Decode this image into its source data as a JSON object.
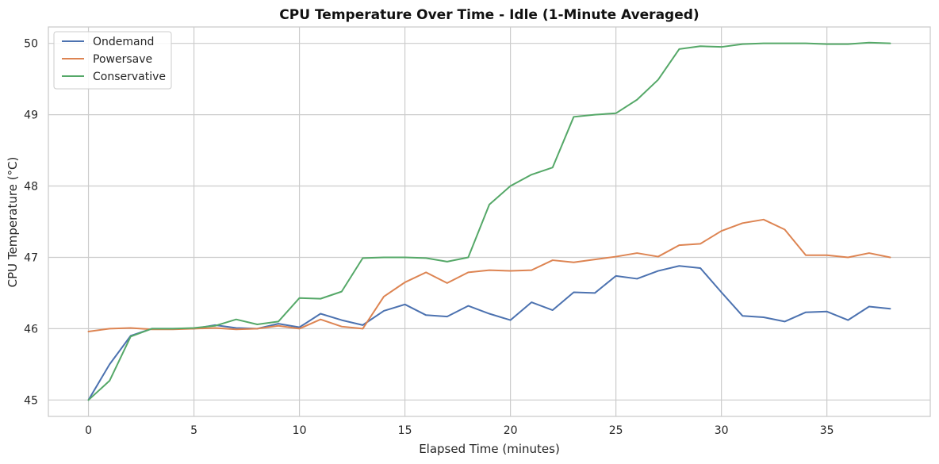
{
  "chart_data": {
    "type": "line",
    "title": "CPU Temperature Over Time - Idle (1-Minute Averaged)",
    "xlabel": "Elapsed Time (minutes)",
    "ylabel": "CPU Temperature (°C)",
    "xlim": [
      -1.9,
      39.9
    ],
    "ylim": [
      44.77,
      50.23
    ],
    "xticks": [
      0,
      5,
      10,
      15,
      20,
      25,
      30,
      35
    ],
    "yticks": [
      45,
      46,
      47,
      48,
      49,
      50
    ],
    "grid": true,
    "legend_position": "top-left",
    "x": [
      0,
      1,
      2,
      3,
      4,
      5,
      6,
      7,
      8,
      9,
      10,
      11,
      12,
      13,
      14,
      15,
      16,
      17,
      18,
      19,
      20,
      21,
      22,
      23,
      24,
      25,
      26,
      27,
      28,
      29,
      30,
      31,
      32,
      33,
      34,
      35,
      36,
      37,
      38
    ],
    "series": [
      {
        "name": "Ondemand",
        "color": "#4c72b0",
        "values": [
          45.0,
          45.5,
          45.9,
          46.0,
          46.0,
          46.0,
          46.05,
          46.01,
          46.0,
          46.07,
          46.02,
          46.21,
          46.12,
          46.05,
          46.25,
          46.34,
          46.19,
          46.17,
          46.32,
          46.21,
          46.12,
          46.37,
          46.26,
          46.51,
          46.5,
          46.74,
          46.7,
          46.81,
          46.88,
          46.85,
          46.51,
          46.18,
          46.16,
          46.1,
          46.23,
          46.24,
          46.12,
          46.31,
          46.28
        ]
      },
      {
        "name": "Powersave",
        "color": "#dd8452",
        "values": [
          45.96,
          46.0,
          46.01,
          45.99,
          45.99,
          46.0,
          46.01,
          45.99,
          46.0,
          46.04,
          46.0,
          46.13,
          46.03,
          46.0,
          46.45,
          46.65,
          46.79,
          46.64,
          46.79,
          46.82,
          46.81,
          46.82,
          46.96,
          46.93,
          46.97,
          47.01,
          47.06,
          47.01,
          47.17,
          47.19,
          47.37,
          47.48,
          47.53,
          47.39,
          47.03,
          47.03,
          47.0,
          47.06,
          47.0
        ]
      },
      {
        "name": "Conservative",
        "color": "#55a868",
        "values": [
          45.0,
          45.27,
          45.89,
          46.0,
          46.0,
          46.01,
          46.04,
          46.13,
          46.06,
          46.1,
          46.43,
          46.42,
          46.52,
          46.99,
          47.0,
          47.0,
          46.99,
          46.94,
          47.0,
          47.74,
          48.0,
          48.16,
          48.26,
          48.97,
          49.0,
          49.02,
          49.21,
          49.49,
          49.92,
          49.96,
          49.95,
          49.99,
          50.0,
          50.0,
          50.0,
          49.99,
          49.99,
          50.01,
          50.0
        ]
      }
    ]
  }
}
